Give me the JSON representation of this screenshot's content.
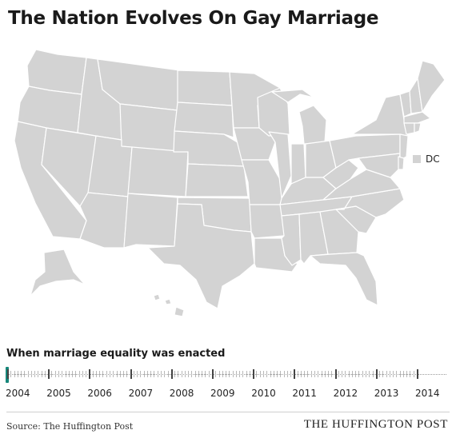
{
  "title": "The Nation Evolves On Gay Marriage",
  "legend": {
    "dc_label": "DC"
  },
  "timeline": {
    "heading": "When marriage equality was enacted",
    "years": [
      "2004",
      "2005",
      "2006",
      "2007",
      "2008",
      "2009",
      "2010",
      "2011",
      "2012",
      "2013",
      "2014"
    ],
    "selected_year": "2004"
  },
  "colors": {
    "state_fill": "#d3d3d3",
    "handle": "#16877a"
  },
  "footer": {
    "source": "Source: The Huffington Post",
    "brand": "THE HUFFINGTON POST"
  }
}
